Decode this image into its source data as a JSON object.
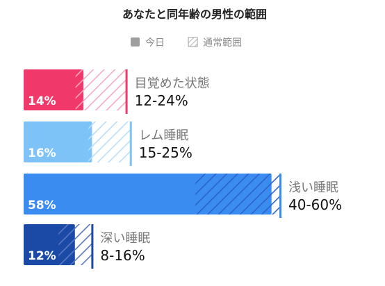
{
  "chart_data": {
    "type": "bar",
    "title": "あなたと同年齢の男性の範囲",
    "legend": {
      "today_label": "今日",
      "normal_label": "通常範囲",
      "placement": "top-center"
    },
    "xlim": [
      0,
      100
    ],
    "unit": "%",
    "series": [
      {
        "category": "目覚めた状態",
        "today": 14,
        "today_label": "14%",
        "range": [
          12,
          24
        ],
        "range_label": "12-24%",
        "color": "#f0386b",
        "hatch_color": "#f7a9bf"
      },
      {
        "category": "レム睡眠",
        "today": 16,
        "today_label": "16%",
        "range": [
          15,
          25
        ],
        "range_label": "15-25%",
        "color": "#7ec3f7",
        "hatch_color": "#b9defa"
      },
      {
        "category": "浅い睡眠",
        "today": 58,
        "today_label": "58%",
        "range": [
          40,
          60
        ],
        "range_label": "40-60%",
        "color": "#3b8cf0",
        "hatch_color": "#2a64c9"
      },
      {
        "category": "深い睡眠",
        "today": 12,
        "today_label": "12%",
        "range": [
          8,
          16
        ],
        "range_label": "8-16%",
        "color": "#1b4aa6",
        "hatch_color": "#5a78c2"
      }
    ]
  }
}
